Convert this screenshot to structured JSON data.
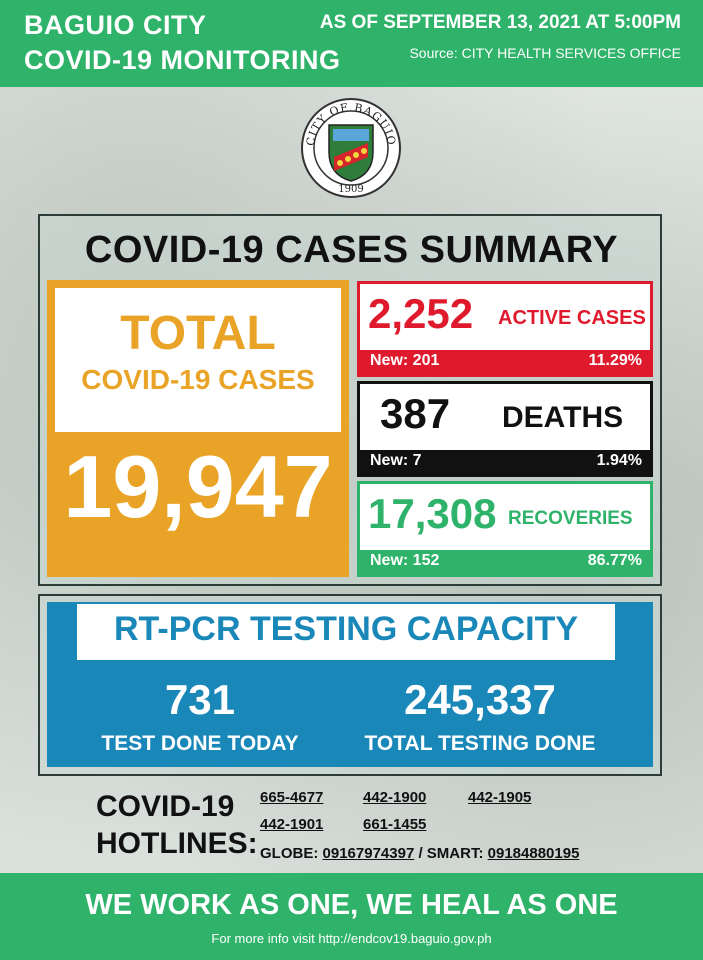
{
  "header": {
    "title_line1": "BAGUIO CITY",
    "title_line2": "COVID-19 MONITORING",
    "date": "AS OF SEPTEMBER 13, 2021 AT 5:00PM",
    "source": "Source: CITY HEALTH SERVICES OFFICE"
  },
  "seal": {
    "icon": "city-seal-icon",
    "text_top": "CITY OF BAGUIO",
    "year": "1909"
  },
  "summary": {
    "title": "COVID-19 CASES SUMMARY",
    "total_label_1": "TOTAL",
    "total_label_2": "COVID-19 CASES",
    "total_value": "19,947",
    "active": {
      "value": "2,252",
      "label": "ACTIVE CASES",
      "new": "New: 201",
      "pct": "11.29%"
    },
    "deaths": {
      "value": "387",
      "label": "DEATHS",
      "new": "New: 7",
      "pct": "1.94%"
    },
    "recoveries": {
      "value": "17,308",
      "label": "RECOVERIES",
      "new": "New: 152",
      "pct": "86.77%"
    }
  },
  "testing": {
    "title": "RT-PCR TESTING CAPACITY",
    "today_value": "731",
    "today_label": "TEST DONE TODAY",
    "total_value": "245,337",
    "total_label": "TOTAL TESTING DONE"
  },
  "hotlines": {
    "title_1": "COVID-19",
    "title_2": "HOTLINES:",
    "numbers": [
      "665-4677",
      "442-1900",
      "442-1905",
      "442-1901",
      "661-1455"
    ],
    "globe_label": "GLOBE:",
    "globe_number": "09167974397",
    "separator": "/",
    "smart_label": "SMART:",
    "smart_number": "09184880195"
  },
  "footer": {
    "slogan": "WE WORK AS ONE, WE HEAL AS ONE",
    "info": "For more info visit http://endcov19.baguio.gov.ph"
  },
  "colors": {
    "green": "#2fb36a",
    "orange": "#e9a327",
    "red": "#e01a2d",
    "blue": "#1a87b9"
  }
}
